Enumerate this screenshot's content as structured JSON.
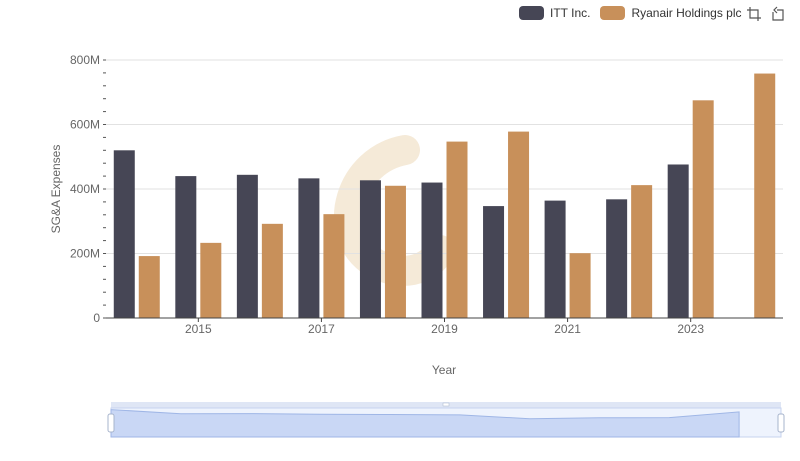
{
  "legend": {
    "series0": "ITT Inc.",
    "series1": "Ryanair Holdings plc"
  },
  "toolbar": {
    "zoom_icon": "zoom-select-icon",
    "reset_icon": "zoom-reset-icon"
  },
  "chart_data": {
    "type": "bar",
    "x": [
      2014,
      2015,
      2016,
      2017,
      2018,
      2019,
      2020,
      2021,
      2022,
      2023,
      2024
    ],
    "x_tick_labels": [
      "2015",
      "2017",
      "2019",
      "2021",
      "2023"
    ],
    "xlabel": "Year",
    "ylabel": "SG&A Expenses",
    "ylim": [
      0,
      800000000
    ],
    "y_tick_labels": [
      "0",
      "200M",
      "400M",
      "600M",
      "800M"
    ],
    "grid": "horizontal",
    "legend_position": "top-right",
    "series": [
      {
        "name": "ITT Inc.",
        "color": "#464655",
        "values": [
          520000000,
          440000000,
          444000000,
          433000000,
          427000000,
          420000000,
          347000000,
          364000000,
          368000000,
          476000000,
          null
        ]
      },
      {
        "name": "Ryanair Holdings plc",
        "color": "#c8905a",
        "values": [
          192000000,
          233000000,
          292000000,
          322000000,
          410000000,
          547000000,
          578000000,
          201000000,
          412000000,
          675000000,
          758000000
        ]
      }
    ]
  }
}
